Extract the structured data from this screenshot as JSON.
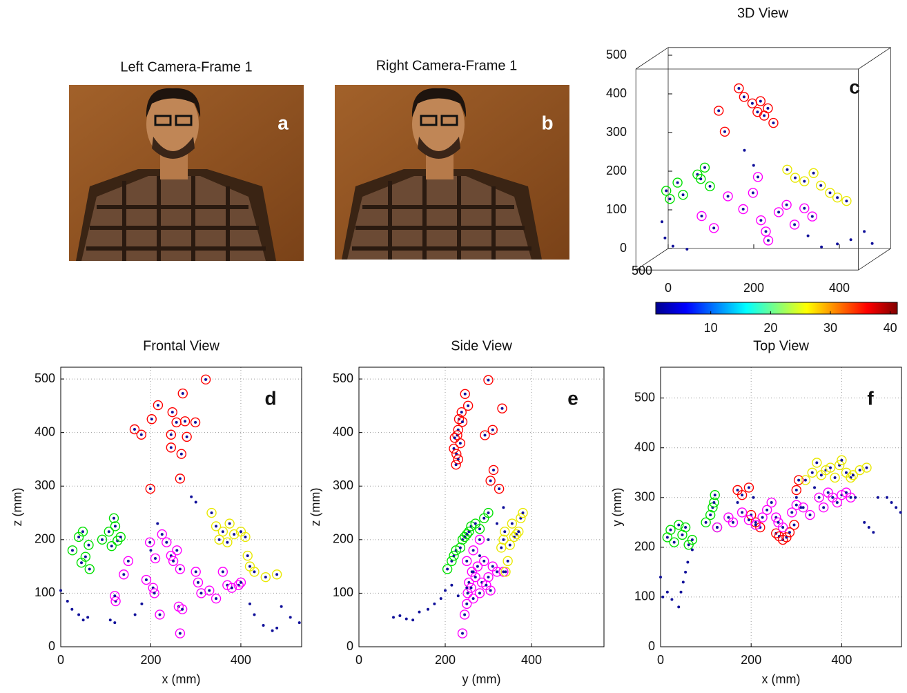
{
  "panels": [
    {
      "title": "Left Camera-Frame 1",
      "label": "a"
    },
    {
      "title": "Right Camera-Frame 1",
      "label": "b"
    }
  ],
  "chart_data": [
    {
      "type": "scatter3d",
      "title": "3D View",
      "annotation": "c",
      "xlim": [
        0,
        520
      ],
      "ylim": [
        0,
        520
      ],
      "zlim": [
        0,
        520
      ],
      "xticks": [
        0,
        200,
        400
      ],
      "yticks": [
        500
      ],
      "zticks": [
        0,
        100,
        200,
        300,
        400,
        500
      ],
      "series": [
        {
          "color": "#ff0000",
          "marker": "ring",
          "x": [
            200,
            215,
            230,
            245,
            255,
            260,
            270,
            280,
            150,
            170
          ],
          "y": [
            240,
            260,
            230,
            250,
            270,
            245,
            255,
            235,
            220,
            260
          ],
          "z": [
            440,
            420,
            400,
            380,
            410,
            370,
            390,
            350,
            380,
            330
          ]
        },
        {
          "color": "#00e000",
          "marker": "ring",
          "x": [
            10,
            20,
            35,
            50,
            80,
            90,
            100,
            110
          ],
          "y": [
            100,
            110,
            90,
            105,
            80,
            95,
            100,
            85
          ],
          "z": [
            160,
            140,
            180,
            150,
            200,
            190,
            220,
            170
          ]
        },
        {
          "color": "#ff00ff",
          "marker": "ring",
          "x": [
            100,
            130,
            160,
            200,
            220,
            240,
            260,
            280,
            300,
            320,
            340,
            360,
            230,
            250
          ],
          "y": [
            150,
            160,
            140,
            170,
            150,
            160,
            180,
            150,
            160,
            170,
            150,
            160,
            140,
            150
          ],
          "z": [
            100,
            70,
            150,
            120,
            160,
            90,
            40,
            110,
            130,
            80,
            120,
            100,
            200,
            60
          ]
        },
        {
          "color": "#e8e800",
          "marker": "ring",
          "x": [
            300,
            320,
            340,
            360,
            380,
            400,
            420,
            440
          ],
          "y": [
            150,
            160,
            150,
            140,
            160,
            150,
            170,
            160
          ],
          "z": [
            220,
            200,
            190,
            210,
            180,
            160,
            150,
            140
          ]
        },
        {
          "color": "#10109a",
          "marker": "dot",
          "x": [
            0,
            10,
            30,
            60,
            200,
            220,
            350,
            380,
            420,
            450,
            480,
            500
          ],
          "y": [
            100,
            120,
            130,
            110,
            150,
            140,
            160,
            150,
            170,
            160,
            150,
            160
          ],
          "z": [
            80,
            40,
            20,
            10,
            270,
            230,
            50,
            20,
            30,
            40,
            60,
            30
          ]
        }
      ]
    },
    {
      "type": "colorbar",
      "colormap": "jet",
      "clim": [
        0.8,
        41.2
      ],
      "ticks": [
        10,
        20,
        30,
        40
      ]
    },
    {
      "type": "scatter",
      "title": "Frontal View",
      "annotation": "d",
      "xlabel": "x (mm)",
      "ylabel": "z (mm)",
      "xlim": [
        0,
        535
      ],
      "ylim": [
        0,
        522
      ],
      "xticks": [
        0,
        200,
        400
      ],
      "yticks": [
        0,
        100,
        200,
        300,
        400,
        500
      ],
      "grid": true,
      "series": [
        {
          "color": "#ff0000",
          "marker": "ring",
          "x": [
            322,
            271,
            216,
            202,
            248,
            164,
            179,
            257,
            276,
            299,
            280,
            245,
            268,
            265,
            199,
            245
          ],
          "y": [
            499,
            473,
            451,
            425,
            438,
            406,
            396,
            419,
            421,
            419,
            392,
            372,
            360,
            314,
            295,
            396
          ]
        },
        {
          "color": "#00e000",
          "marker": "ring",
          "x": [
            26,
            49,
            62,
            46,
            64,
            40,
            107,
            118,
            126,
            113,
            133,
            92,
            121,
            55
          ],
          "y": [
            180,
            215,
            190,
            157,
            145,
            205,
            215,
            240,
            198,
            188,
            205,
            200,
            225,
            168
          ]
        },
        {
          "color": "#ff00ff",
          "marker": "ring",
          "x": [
            122,
            140,
            150,
            190,
            198,
            205,
            208,
            225,
            235,
            245,
            250,
            258,
            262,
            265,
            270,
            300,
            305,
            312,
            330,
            345,
            360,
            370,
            380,
            395,
            400,
            210,
            220,
            265,
            120
          ],
          "y": [
            85,
            135,
            160,
            125,
            195,
            110,
            100,
            210,
            195,
            170,
            160,
            180,
            75,
            25,
            70,
            140,
            120,
            100,
            105,
            90,
            140,
            115,
            110,
            115,
            120,
            165,
            60,
            145,
            95
          ]
        },
        {
          "color": "#e8e800",
          "marker": "ring",
          "x": [
            335,
            345,
            352,
            360,
            370,
            375,
            385,
            400,
            410,
            415,
            420,
            430,
            455,
            480
          ],
          "y": [
            250,
            225,
            200,
            215,
            195,
            230,
            210,
            215,
            205,
            170,
            150,
            140,
            130,
            135
          ]
        },
        {
          "color": "#10109a",
          "marker": "dot",
          "x": [
            0,
            15,
            25,
            40,
            50,
            60,
            110,
            120,
            165,
            180,
            200,
            215,
            290,
            300,
            420,
            430,
            450,
            470,
            480,
            490,
            510,
            530
          ],
          "y": [
            105,
            85,
            70,
            60,
            50,
            55,
            50,
            45,
            60,
            80,
            180,
            230,
            280,
            270,
            80,
            60,
            40,
            30,
            35,
            75,
            55,
            45
          ]
        }
      ]
    },
    {
      "type": "scatter",
      "title": "Side View",
      "annotation": "e",
      "xlabel": "y (mm)",
      "ylabel": "z (mm)",
      "xlim": [
        0,
        568
      ],
      "ylim": [
        0,
        522
      ],
      "xticks": [
        0,
        200,
        400
      ],
      "yticks": [
        0,
        100,
        200,
        300,
        400,
        500
      ],
      "grid": true,
      "series": [
        {
          "color": "#ff0000",
          "marker": "ring",
          "x": [
            246,
            253,
            238,
            232,
            240,
            230,
            228,
            222,
            235,
            220,
            226,
            230,
            225,
            300,
            292,
            332,
            312,
            325,
            305,
            310
          ],
          "y": [
            472,
            450,
            438,
            425,
            420,
            405,
            395,
            390,
            380,
            370,
            360,
            350,
            340,
            498,
            395,
            445,
            330,
            295,
            310,
            405
          ]
        },
        {
          "color": "#00e000",
          "marker": "ring",
          "x": [
            205,
            215,
            220,
            225,
            235,
            240,
            245,
            250,
            255,
            260,
            270,
            280,
            290,
            300
          ],
          "y": [
            145,
            160,
            170,
            180,
            185,
            200,
            205,
            210,
            215,
            225,
            230,
            220,
            240,
            250
          ]
        },
        {
          "color": "#ff00ff",
          "marker": "ring",
          "x": [
            240,
            245,
            250,
            252,
            255,
            260,
            262,
            265,
            270,
            275,
            280,
            285,
            290,
            295,
            300,
            305,
            310,
            320,
            335,
            250,
            265,
            280
          ],
          "y": [
            25,
            60,
            80,
            100,
            120,
            110,
            140,
            90,
            130,
            150,
            100,
            120,
            160,
            115,
            130,
            105,
            150,
            140,
            140,
            160,
            180,
            200
          ]
        },
        {
          "color": "#e8e800",
          "marker": "ring",
          "x": [
            330,
            335,
            338,
            340,
            345,
            350,
            355,
            360,
            365,
            370,
            375,
            380
          ],
          "y": [
            185,
            200,
            215,
            140,
            160,
            190,
            230,
            205,
            210,
            215,
            240,
            250
          ]
        },
        {
          "color": "#10109a",
          "marker": "dot",
          "x": [
            80,
            95,
            110,
            125,
            140,
            160,
            175,
            190,
            200,
            215,
            230,
            250,
            265,
            280,
            300,
            320,
            335
          ],
          "y": [
            55,
            58,
            52,
            50,
            65,
            70,
            80,
            90,
            105,
            115,
            95,
            110,
            140,
            170,
            200,
            230,
            260
          ]
        }
      ]
    },
    {
      "type": "scatter",
      "title": "Top View",
      "annotation": "f",
      "xlabel": "x (mm)",
      "ylabel": "y (mm)",
      "xlim": [
        0,
        532
      ],
      "ylim": [
        0,
        562
      ],
      "xticks": [
        0,
        200,
        400
      ],
      "yticks": [
        0,
        100,
        200,
        300,
        400,
        500
      ],
      "grid": true,
      "series": [
        {
          "color": "#00e000",
          "marker": "ring",
          "x": [
            15,
            22,
            30,
            40,
            48,
            55,
            62,
            70,
            100,
            110,
            115,
            118,
            120,
            125
          ],
          "y": [
            220,
            235,
            210,
            245,
            225,
            240,
            205,
            215,
            250,
            265,
            280,
            290,
            305,
            240
          ]
        },
        {
          "color": "#ff0000",
          "marker": "ring",
          "x": [
            170,
            180,
            200,
            210,
            220,
            255,
            262,
            270,
            278,
            285,
            295,
            300,
            305,
            195
          ],
          "y": [
            315,
            305,
            265,
            250,
            240,
            228,
            222,
            215,
            220,
            230,
            245,
            315,
            335,
            320
          ]
        },
        {
          "color": "#ff00ff",
          "marker": "ring",
          "x": [
            125,
            150,
            160,
            180,
            195,
            210,
            225,
            235,
            245,
            255,
            260,
            270,
            290,
            300,
            315,
            330,
            350,
            370,
            380,
            390,
            400,
            410,
            420,
            360
          ],
          "y": [
            240,
            260,
            250,
            270,
            255,
            245,
            260,
            275,
            290,
            260,
            250,
            240,
            270,
            285,
            280,
            265,
            300,
            310,
            300,
            290,
            305,
            310,
            300,
            280
          ]
        },
        {
          "color": "#e8e800",
          "marker": "ring",
          "x": [
            320,
            335,
            345,
            355,
            365,
            375,
            385,
            395,
            400,
            410,
            420,
            425,
            440,
            455
          ],
          "y": [
            335,
            350,
            370,
            345,
            355,
            360,
            340,
            365,
            375,
            350,
            340,
            345,
            355,
            360
          ]
        },
        {
          "color": "#10109a",
          "marker": "dot",
          "x": [
            0,
            5,
            15,
            25,
            40,
            45,
            50,
            55,
            60,
            70,
            170,
            205,
            300,
            310,
            340,
            430,
            450,
            460,
            470,
            480,
            500,
            510,
            520,
            530
          ],
          "y": [
            140,
            100,
            110,
            95,
            80,
            110,
            130,
            150,
            170,
            195,
            290,
            300,
            300,
            280,
            320,
            300,
            250,
            240,
            230,
            300,
            300,
            290,
            280,
            270
          ]
        }
      ]
    }
  ]
}
